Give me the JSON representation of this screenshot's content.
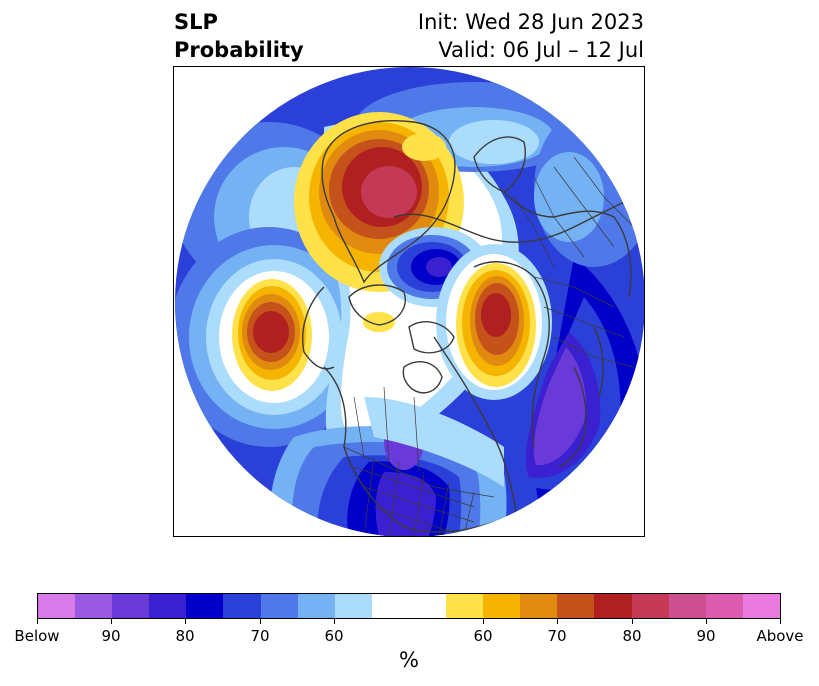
{
  "title": {
    "left_line1": "SLP",
    "left_line2": "Probability",
    "init": "Init: Wed 28 Jun 2023",
    "valid": "Valid: 06 Jul – 12 Jul"
  },
  "colorbar": {
    "unit": "%",
    "colors": [
      "#d87ae8",
      "#9a5ae2",
      "#6a3ad8",
      "#3a20d0",
      "#0000c8",
      "#2a40d8",
      "#4f78e8",
      "#74b2f4",
      "#acdcfc",
      "#ffffff",
      "#ffe14a",
      "#f4b400",
      "#e08a10",
      "#c4521a",
      "#b02020",
      "#c43a56",
      "#cc5090",
      "#dc5cb0",
      "#e87ae0"
    ],
    "labels": [
      "Below",
      "90",
      "80",
      "70",
      "60",
      "60",
      "70",
      "80",
      "90",
      "Above"
    ]
  },
  "map": {
    "projection": "north-polar-stereographic",
    "features": [
      "SLP probability shading",
      "coastlines",
      "country borders",
      "US state boundaries"
    ]
  }
}
